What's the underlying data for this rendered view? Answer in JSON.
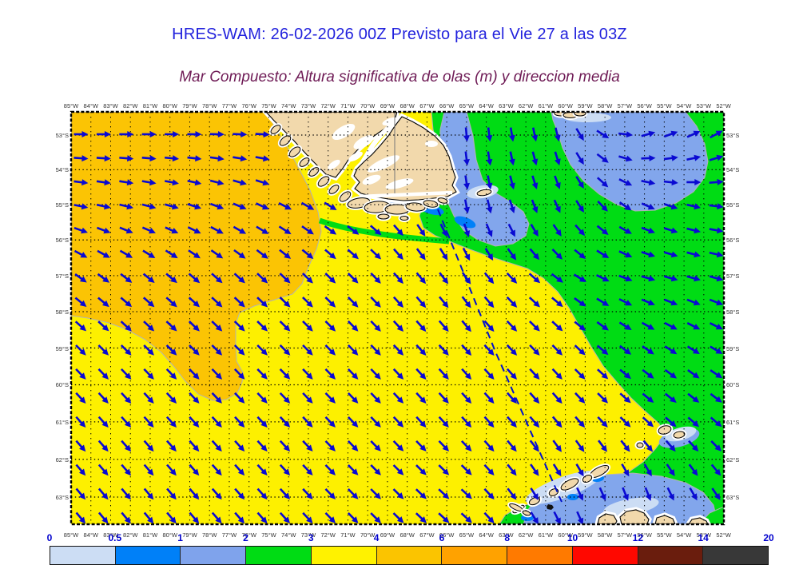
{
  "header": {
    "title": "HRES-WAM: 26-02-2026 00Z Previsto para el Vie 27 a las 03Z",
    "title_color": "#2222dd",
    "subtitle": "Mar Compuesto: Altura significativa de olas (m) y direccion media",
    "subtitle_color": "#6e1a55"
  },
  "map": {
    "lon_ticks": [
      "85°W",
      "84°W",
      "83°W",
      "82°W",
      "81°W",
      "80°W",
      "79°W",
      "78°W",
      "77°W",
      "76°W",
      "75°W",
      "74°W",
      "73°W",
      "72°W",
      "71°W",
      "70°W",
      "69°W",
      "68°W",
      "67°W",
      "66°W",
      "65°W",
      "64°W",
      "63°W",
      "62°W",
      "61°W",
      "60°W",
      "59°W",
      "58°W",
      "57°W",
      "56°W",
      "55°W",
      "54°W",
      "53°W",
      "52°W"
    ],
    "lat_ticks": [
      "53°S",
      "54°S",
      "55°S",
      "56°S",
      "57°S",
      "58°S",
      "59°S",
      "60°S",
      "61°S",
      "62°S",
      "63°S"
    ],
    "region_colors": {
      "sea_yellow": "#fdf000",
      "sea_gold": "#fbc404",
      "sea_green": "#00dc14",
      "sea_blue": "#82a6ec",
      "sea_paleblue": "#ccddf4",
      "sea_dodger": "#0080f8",
      "land": "#f2d9ac",
      "coastline": "#000000",
      "region_edge": "#b3b3b3",
      "arrow": "#0a0ad2",
      "track": "#0011cc"
    }
  },
  "colorbar": {
    "tick_labels": [
      "0",
      "0.5",
      "1",
      "2",
      "3",
      "4",
      "6",
      "8",
      "10",
      "12",
      "14",
      "20"
    ],
    "colors": [
      "#ccddf4",
      "#0080f8",
      "#7fa3ec",
      "#00dc14",
      "#fff200",
      "#fbc400",
      "#ffa200",
      "#ff7a00",
      "#ff0800",
      "#6a1d0d",
      "#383838"
    ],
    "label_color": "#0000cd",
    "units": "m"
  },
  "wave_direction_field": {
    "comment": "mean wave direction in degrees clockwise from east (arrow points along value); grid lons x lats",
    "lons_w": [
      85,
      80,
      75,
      70,
      65,
      60,
      56,
      52
    ],
    "lats_s": [
      53,
      55,
      57,
      59,
      61,
      63
    ],
    "angles": [
      [
        0,
        0,
        3,
        15,
        85,
        75,
        -15,
        -30
      ],
      [
        10,
        15,
        25,
        35,
        80,
        65,
        25,
        5
      ],
      [
        35,
        40,
        43,
        45,
        55,
        35,
        15,
        15
      ],
      [
        45,
        45,
        45,
        46,
        48,
        45,
        35,
        30
      ],
      [
        48,
        48,
        47,
        46,
        48,
        50,
        42,
        40
      ],
      [
        50,
        50,
        48,
        45,
        42,
        65,
        70,
        55
      ]
    ]
  }
}
